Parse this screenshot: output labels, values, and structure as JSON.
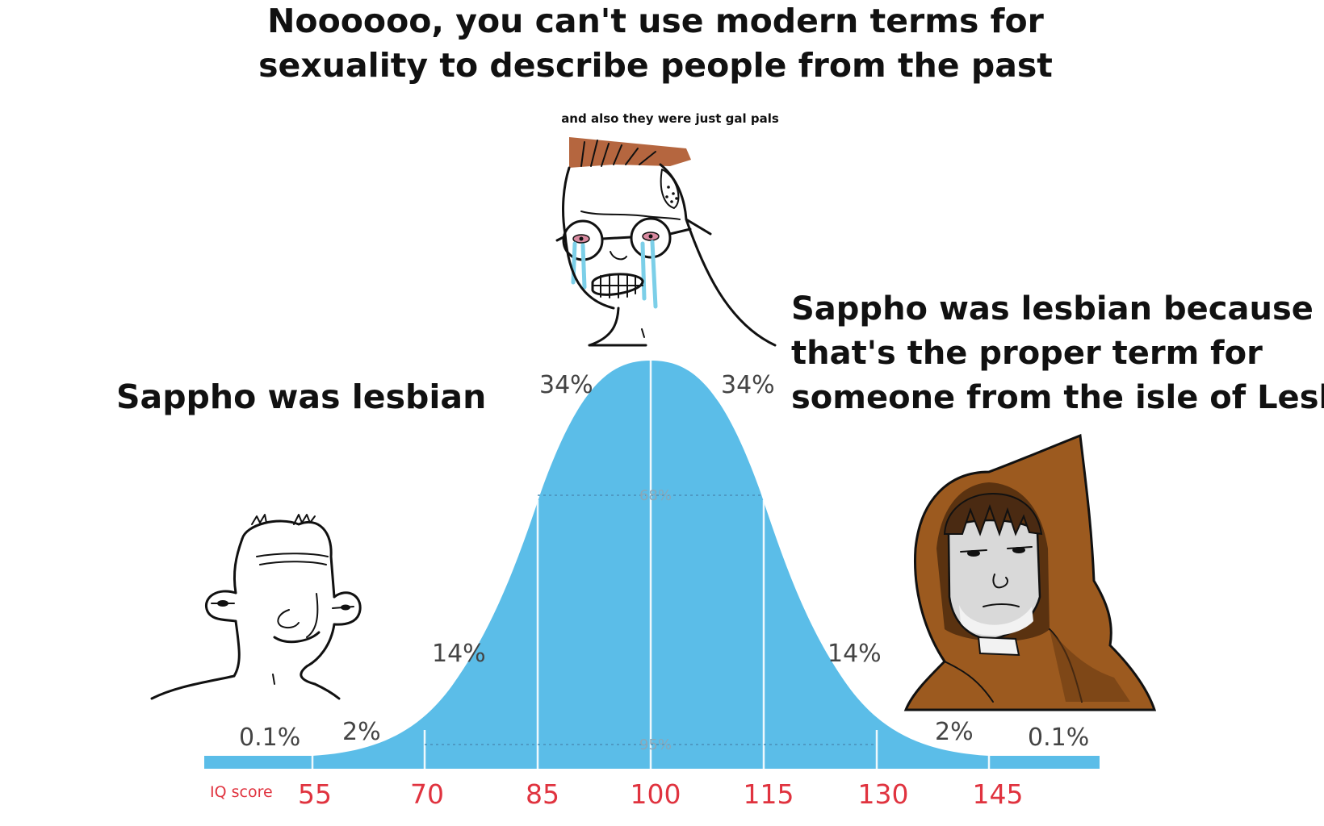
{
  "captions": {
    "top_line1": "Noooooo, you can't use modern terms for",
    "top_line2": "sexuality to describe people from the past",
    "top_small": "and also they were just gal pals",
    "left": "Sappho was lesbian",
    "right_line1": "Sappho was lesbian because",
    "right_line2": "that's the proper term for",
    "right_line3": "someone from the isle of Lesbos"
  },
  "bell_curve": {
    "pct_far_left": "0.1%",
    "pct_left_2": "2%",
    "pct_left_14": "14%",
    "pct_left_34": "34%",
    "pct_right_34": "34%",
    "pct_right_14": "14%",
    "pct_right_2": "2%",
    "pct_far_right": "0.1%",
    "inner_68": "68%",
    "inner_95": "95%",
    "axis_label": "IQ score",
    "ticks": [
      "55",
      "70",
      "85",
      "100",
      "115",
      "130",
      "145"
    ],
    "fill_color": "#5bbde8"
  },
  "characters": {
    "left": "wojak-smiling",
    "middle": "crying-glasses-wojak",
    "right": "hooded-wojak"
  }
}
